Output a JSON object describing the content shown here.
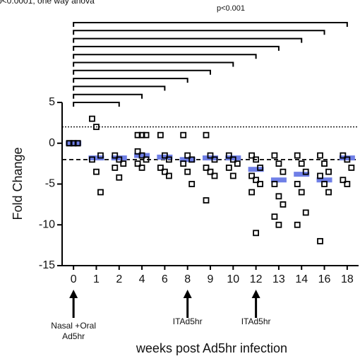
{
  "chart_data": {
    "type": "dotplot",
    "title_partial": "p<0.0001, one way anova",
    "p_label": "p<0.001",
    "x_label": "weeks post Ad5hr infection",
    "y_label": "Fold Change",
    "categories": [
      "0",
      "1",
      "2",
      "4",
      "6",
      "8",
      "9",
      "10",
      "12",
      "13",
      "14",
      "16",
      "18"
    ],
    "points": [
      [
        0,
        0,
        0,
        0,
        0,
        0
      ],
      [
        3,
        2,
        -1.5,
        -2,
        -3.5,
        -6
      ],
      [
        -1.5,
        -2,
        -2.5,
        -3,
        -4.2
      ],
      [
        1,
        1,
        1,
        -1,
        -1.5,
        -2,
        -2.5,
        -3
      ],
      [
        1,
        -1.5,
        -2,
        -3,
        -3.5,
        -4
      ],
      [
        1,
        -1.5,
        -2,
        -2.5,
        -3.5,
        -5
      ],
      [
        1,
        -1.5,
        -2,
        -3,
        -3.5,
        -4,
        -7
      ],
      [
        -1.5,
        -2,
        -2.5,
        -3,
        -4
      ],
      [
        -1.5,
        -2,
        -3,
        -4,
        -4.5,
        -5,
        -6,
        -11
      ],
      [
        -1.5,
        -2.5,
        -3.5,
        -5,
        -6.5,
        -7.5,
        -9,
        -10
      ],
      [
        -1.5,
        -2.5,
        -3.5,
        -5,
        -6,
        -8.5,
        -10
      ],
      [
        -1.5,
        -2.5,
        -3.5,
        -4,
        -5,
        -6,
        -12
      ],
      [
        -1.5,
        -2,
        -3,
        -4.5,
        -5
      ]
    ],
    "means": [
      0,
      -1.8,
      -1.8,
      -1.5,
      -1.7,
      -2,
      -1.8,
      -1.8,
      -3.2,
      -4.5,
      -3.8,
      -4.5,
      -1.8
    ],
    "mean_color": "#6f7fe6",
    "ylim": [
      -15,
      5
    ],
    "yticks": [
      5,
      0,
      -5,
      -10,
      -15
    ],
    "reference_lines": [
      {
        "value": 2,
        "style": "dotted"
      },
      {
        "value": -2,
        "style": "dashed"
      }
    ],
    "comparisons": [
      {
        "from": "0",
        "to": "18"
      },
      {
        "from": "0",
        "to": "16"
      },
      {
        "from": "0",
        "to": "14"
      },
      {
        "from": "0",
        "to": "13"
      },
      {
        "from": "0",
        "to": "12"
      },
      {
        "from": "0",
        "to": "10"
      },
      {
        "from": "0",
        "to": "9"
      },
      {
        "from": "0",
        "to": "8"
      },
      {
        "from": "0",
        "to": "6"
      },
      {
        "from": "0",
        "to": "4"
      },
      {
        "from": "0",
        "to": "2"
      }
    ],
    "annotations": [
      {
        "x": "0",
        "text": [
          "Nasal +Oral",
          "Ad5hr"
        ]
      },
      {
        "x": "8",
        "text": [
          "ITAd5hr"
        ]
      },
      {
        "x": "12",
        "text": [
          "ITAd5hr"
        ]
      }
    ]
  }
}
